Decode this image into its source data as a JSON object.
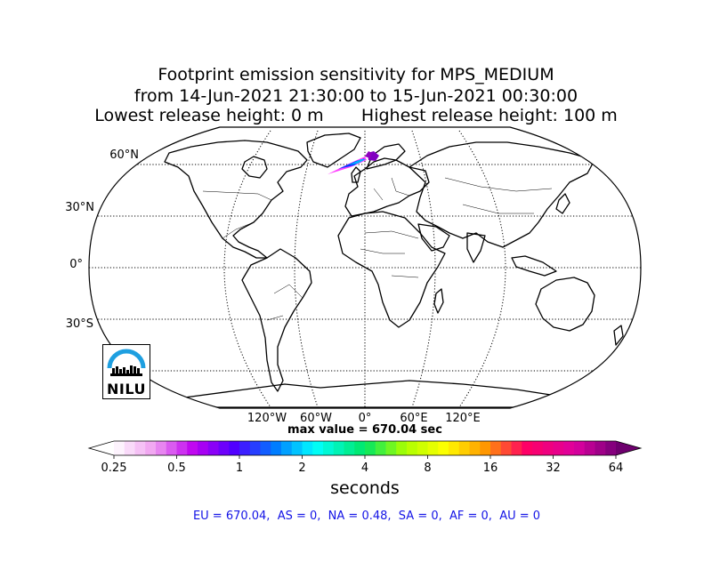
{
  "title": {
    "line1": "Footprint emission sensitivity for MPS_MEDIUM",
    "line2": "from 14-Jun-2021 21:30:00 to 15-Jun-2021 00:30:00",
    "line3": "Lowest release height: 0 m       Highest release height: 100 m"
  },
  "map": {
    "projection": "Robinson",
    "lat_labels": [
      "60°N",
      "30°N",
      "0°",
      "30°S"
    ],
    "lon_labels": [
      "120°W",
      "60°W",
      "0°",
      "60°E",
      "120°E"
    ],
    "hotspot_colors": [
      "#ff40ff",
      "#7f00c0",
      "#0040ff",
      "#00b0ff",
      "#9000c0"
    ]
  },
  "logo": {
    "text": "NILU",
    "color": "#1e9fe0"
  },
  "max_value_text": "max value = 670.04 sec",
  "colorbar": {
    "tick_labels": [
      "0.25",
      "0.5",
      "1",
      "2",
      "4",
      "8",
      "16",
      "32",
      "64"
    ],
    "unit": "seconds",
    "extend": "both"
  },
  "regions_text": "EU = 670.04,  AS = 0,  NA = 0.48,  SA = 0,  AF = 0,  AU = 0"
}
